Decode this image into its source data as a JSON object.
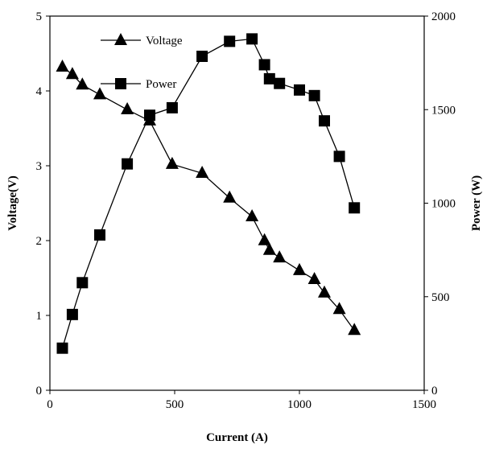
{
  "chart_data": {
    "type": "line",
    "xlabel": "Current (A)",
    "ylabel": "Voltage(V)",
    "y2label": "Power (W)",
    "xlim": [
      0,
      1500
    ],
    "ylim": [
      0,
      5
    ],
    "y2lim": [
      0,
      2000
    ],
    "xticks": [
      "0",
      "500",
      "1000",
      "1500"
    ],
    "yticks": [
      "0",
      "1",
      "2",
      "3",
      "4",
      "5"
    ],
    "y2ticks": [
      "0",
      "500",
      "1000",
      "1500",
      "2000"
    ],
    "grid": false,
    "legend_position": "top-left",
    "series": [
      {
        "name": "Voltage",
        "axis": "left",
        "marker": "triangle",
        "color": "#000000",
        "x": [
          50,
          90,
          130,
          200,
          310,
          400,
          490,
          610,
          720,
          810,
          860,
          880,
          920,
          1000,
          1060,
          1100,
          1160,
          1220
        ],
        "y": [
          4.32,
          4.22,
          4.08,
          3.95,
          3.75,
          3.6,
          3.02,
          2.9,
          2.57,
          2.32,
          2.0,
          1.87,
          1.77,
          1.6,
          1.48,
          1.3,
          1.08,
          0.8
        ]
      },
      {
        "name": "Power",
        "axis": "right",
        "marker": "square",
        "color": "#000000",
        "x": [
          50,
          90,
          130,
          200,
          310,
          400,
          490,
          610,
          720,
          810,
          860,
          880,
          920,
          1000,
          1060,
          1100,
          1160,
          1220
        ],
        "y": [
          225,
          405,
          575,
          830,
          1210,
          1470,
          1510,
          1785,
          1865,
          1878,
          1740,
          1665,
          1640,
          1605,
          1575,
          1440,
          1250,
          975
        ]
      }
    ]
  }
}
